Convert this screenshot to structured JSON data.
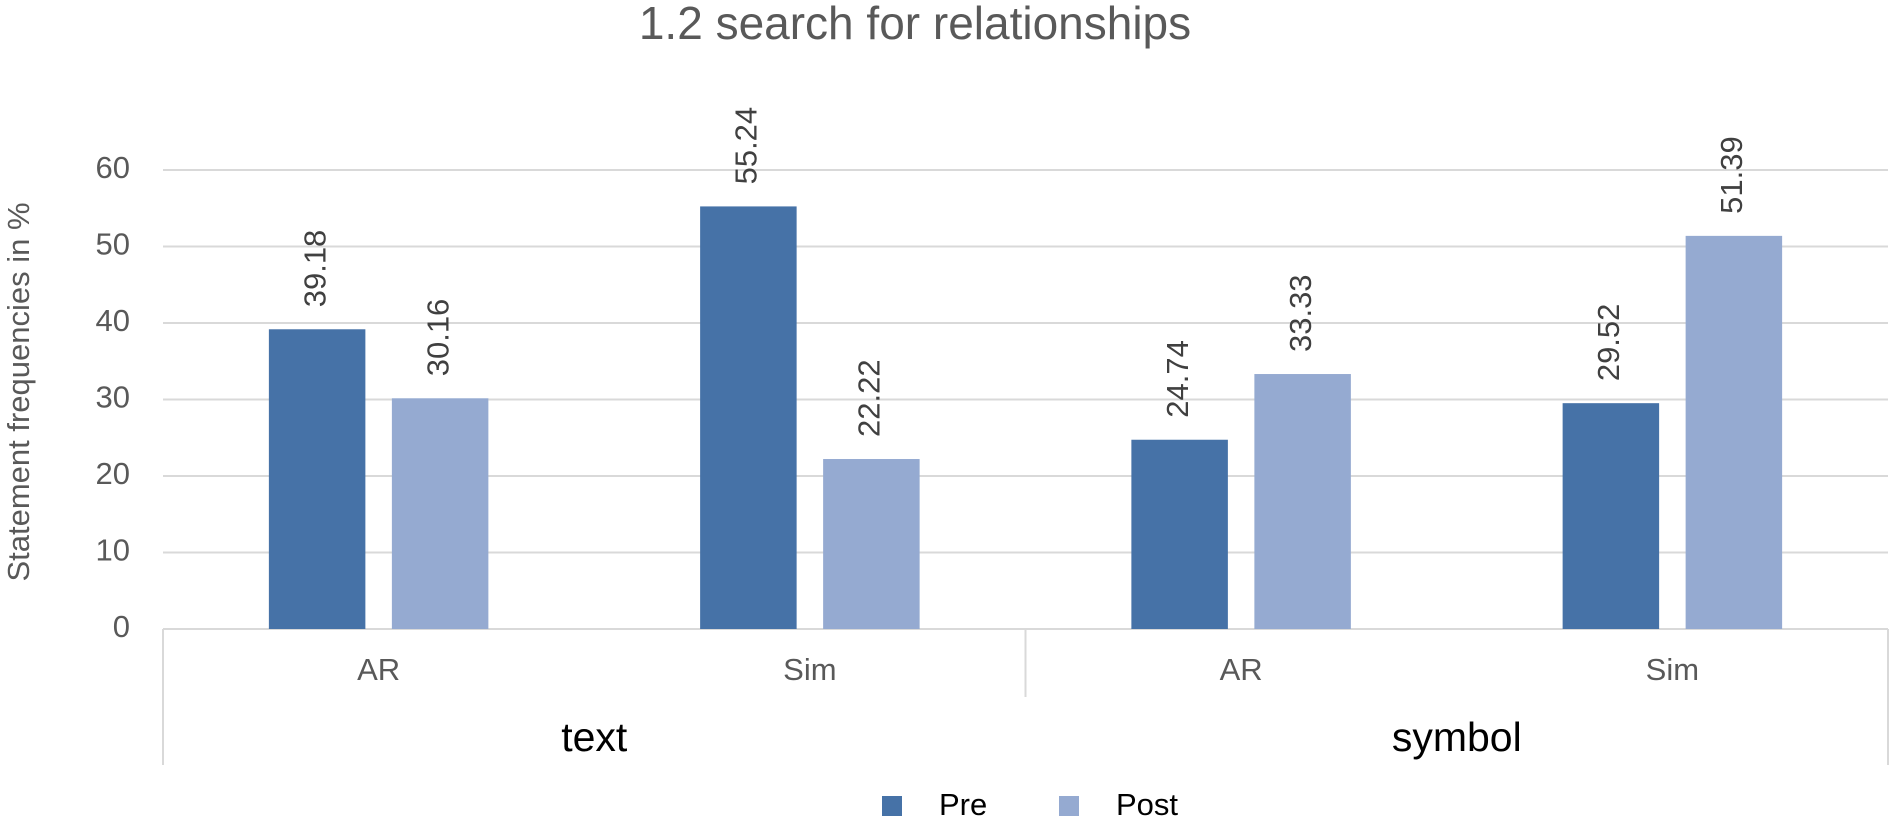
{
  "chart_data": {
    "type": "bar",
    "title": "1.2 search for relationships",
    "y_label": "Statement frequencies in %",
    "categories": [
      "AR",
      "Sim",
      "AR",
      "Sim"
    ],
    "groups": [
      "text",
      "symbol"
    ],
    "series": [
      {
        "name": "Pre",
        "color": "#4672a7",
        "values": [
          39.18,
          55.24,
          24.74,
          29.52
        ]
      },
      {
        "name": "Post",
        "color": "#95aad1",
        "values": [
          30.16,
          22.22,
          33.33,
          51.39
        ]
      }
    ],
    "ylim": [
      0,
      60
    ],
    "yticks": [
      0,
      10,
      20,
      30,
      40,
      50,
      60
    ],
    "grid": true,
    "legend": "bottom"
  }
}
